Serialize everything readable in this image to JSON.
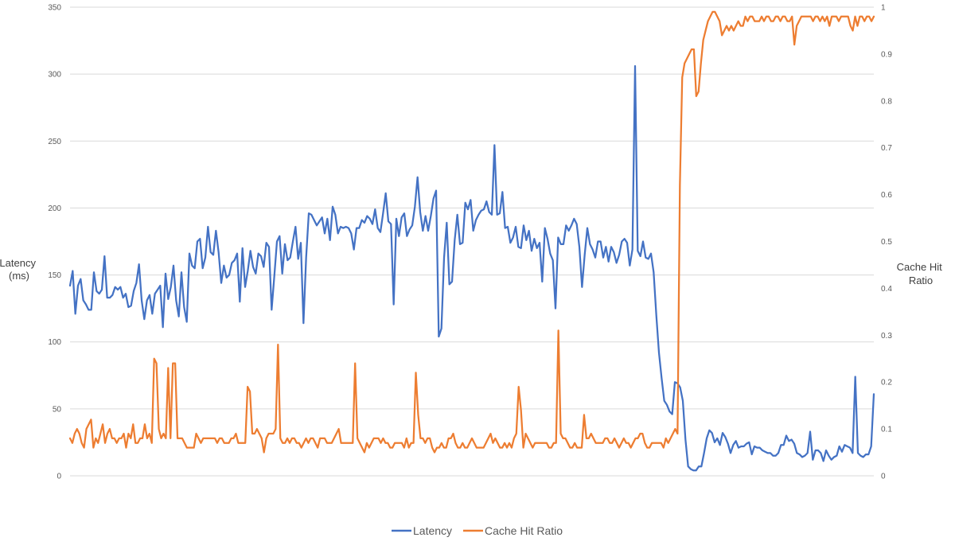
{
  "chart_data": {
    "type": "line",
    "title": "",
    "ylabel_lines": [
      "Latency",
      "(ms)"
    ],
    "y2label_lines": [
      "Cache Hit",
      "Ratio"
    ],
    "ylim": [
      0,
      350
    ],
    "y_ticks": [
      0,
      50,
      100,
      150,
      200,
      250,
      300,
      350
    ],
    "y2lim": [
      0,
      1
    ],
    "y2_ticks": [
      "0",
      "0.1",
      "0.2",
      "0.3",
      "0.4",
      "0.5",
      "0.6",
      "0.7",
      "0.8",
      "0.9",
      "1"
    ],
    "grid": true,
    "legend": "bottom",
    "series": [
      {
        "name": "Latency",
        "axis": "left",
        "color": "#4472c4",
        "values": [
          142,
          153,
          121,
          142,
          147,
          131,
          128,
          124,
          124,
          152,
          138,
          136,
          139,
          164,
          133,
          133,
          135,
          141,
          139,
          141,
          133,
          136,
          126,
          127,
          138,
          144,
          158,
          131,
          117,
          131,
          135,
          121,
          136,
          139,
          142,
          111,
          151,
          132,
          141,
          157,
          131,
          119,
          152,
          126,
          115,
          166,
          157,
          155,
          175,
          177,
          155,
          163,
          186,
          167,
          165,
          183,
          167,
          144,
          157,
          148,
          150,
          159,
          161,
          166,
          130,
          170,
          141,
          153,
          168,
          156,
          151,
          166,
          164,
          156,
          174,
          171,
          124,
          149,
          175,
          179,
          151,
          173,
          161,
          163,
          175,
          186,
          162,
          174,
          114,
          163,
          196,
          195,
          191,
          187,
          190,
          193,
          181,
          192,
          176,
          201,
          195,
          181,
          186,
          185,
          186,
          185,
          181,
          169,
          185,
          185,
          191,
          189,
          194,
          192,
          188,
          199,
          185,
          182,
          196,
          211,
          190,
          188,
          128,
          192,
          179,
          193,
          196,
          179,
          184,
          187,
          201,
          223,
          197,
          183,
          194,
          183,
          194,
          207,
          213,
          104,
          110,
          163,
          189,
          143,
          145,
          176,
          195,
          173,
          174,
          204,
          199,
          206,
          183,
          191,
          195,
          198,
          199,
          205,
          197,
          195,
          247,
          195,
          196,
          212,
          185,
          186,
          174,
          178,
          186,
          171,
          170,
          187,
          176,
          183,
          168,
          177,
          170,
          174,
          145,
          185,
          177,
          166,
          161,
          125,
          178,
          173,
          173,
          187,
          183,
          187,
          192,
          188,
          171,
          141,
          165,
          185,
          173,
          169,
          163,
          175,
          175,
          163,
          171,
          160,
          171,
          167,
          159,
          165,
          175,
          177,
          174,
          157,
          169,
          306,
          168,
          164,
          175,
          163,
          162,
          166,
          152,
          120,
          92,
          73,
          56,
          53,
          48,
          46,
          70,
          69,
          66,
          56,
          27,
          7,
          5,
          4,
          4,
          7,
          7,
          17,
          28,
          34,
          32,
          25,
          28,
          23,
          32,
          29,
          24,
          17,
          23,
          26,
          21,
          22,
          22,
          24,
          25,
          16,
          22,
          21,
          21,
          19,
          18,
          17,
          17,
          15,
          15,
          17,
          23,
          23,
          30,
          26,
          27,
          24,
          17,
          16,
          14,
          15,
          17,
          33,
          12,
          19,
          19,
          17,
          11,
          19,
          15,
          12,
          14,
          15,
          22,
          18,
          23,
          22,
          21,
          17,
          74,
          17,
          15,
          14,
          16,
          16,
          22,
          61
        ]
      },
      {
        "name": "Cache Hit Ratio",
        "axis": "right",
        "color": "#ed7d31",
        "values": [
          0.08,
          0.07,
          0.09,
          0.1,
          0.09,
          0.07,
          0.06,
          0.1,
          0.11,
          0.12,
          0.06,
          0.08,
          0.07,
          0.09,
          0.11,
          0.07,
          0.09,
          0.1,
          0.08,
          0.08,
          0.07,
          0.08,
          0.08,
          0.09,
          0.06,
          0.09,
          0.08,
          0.11,
          0.07,
          0.07,
          0.08,
          0.08,
          0.11,
          0.08,
          0.09,
          0.07,
          0.25,
          0.24,
          0.1,
          0.08,
          0.09,
          0.08,
          0.23,
          0.08,
          0.24,
          0.24,
          0.08,
          0.08,
          0.08,
          0.07,
          0.06,
          0.06,
          0.06,
          0.06,
          0.09,
          0.08,
          0.07,
          0.08,
          0.08,
          0.08,
          0.08,
          0.08,
          0.08,
          0.07,
          0.08,
          0.08,
          0.07,
          0.07,
          0.07,
          0.08,
          0.08,
          0.09,
          0.07,
          0.07,
          0.07,
          0.07,
          0.19,
          0.18,
          0.09,
          0.09,
          0.1,
          0.09,
          0.08,
          0.05,
          0.08,
          0.09,
          0.09,
          0.09,
          0.1,
          0.28,
          0.08,
          0.07,
          0.07,
          0.08,
          0.07,
          0.08,
          0.08,
          0.07,
          0.07,
          0.06,
          0.07,
          0.08,
          0.07,
          0.08,
          0.08,
          0.07,
          0.06,
          0.08,
          0.08,
          0.08,
          0.07,
          0.07,
          0.07,
          0.08,
          0.09,
          0.1,
          0.07,
          0.07,
          0.07,
          0.07,
          0.07,
          0.07,
          0.24,
          0.08,
          0.07,
          0.06,
          0.05,
          0.07,
          0.06,
          0.07,
          0.08,
          0.08,
          0.08,
          0.07,
          0.08,
          0.07,
          0.07,
          0.06,
          0.06,
          0.07,
          0.07,
          0.07,
          0.07,
          0.06,
          0.08,
          0.06,
          0.07,
          0.07,
          0.22,
          0.13,
          0.08,
          0.08,
          0.07,
          0.08,
          0.08,
          0.06,
          0.05,
          0.06,
          0.06,
          0.07,
          0.06,
          0.06,
          0.08,
          0.08,
          0.09,
          0.07,
          0.06,
          0.06,
          0.07,
          0.06,
          0.06,
          0.07,
          0.08,
          0.07,
          0.06,
          0.06,
          0.06,
          0.06,
          0.07,
          0.08,
          0.09,
          0.07,
          0.08,
          0.07,
          0.06,
          0.06,
          0.07,
          0.06,
          0.07,
          0.06,
          0.08,
          0.09,
          0.19,
          0.14,
          0.06,
          0.09,
          0.08,
          0.07,
          0.06,
          0.07,
          0.07,
          0.07,
          0.07,
          0.07,
          0.07,
          0.06,
          0.06,
          0.07,
          0.07,
          0.31,
          0.09,
          0.08,
          0.08,
          0.07,
          0.06,
          0.06,
          0.07,
          0.06,
          0.06,
          0.06,
          0.13,
          0.08,
          0.08,
          0.09,
          0.08,
          0.07,
          0.07,
          0.07,
          0.07,
          0.08,
          0.08,
          0.07,
          0.07,
          0.08,
          0.07,
          0.06,
          0.07,
          0.08,
          0.07,
          0.07,
          0.06,
          0.07,
          0.08,
          0.08,
          0.09,
          0.09,
          0.07,
          0.06,
          0.06,
          0.07,
          0.07,
          0.07,
          0.07,
          0.07,
          0.06,
          0.08,
          0.07,
          0.08,
          0.09,
          0.1,
          0.09,
          0.62,
          0.85,
          0.88,
          0.89,
          0.9,
          0.91,
          0.91,
          0.81,
          0.82,
          0.88,
          0.93,
          0.95,
          0.97,
          0.98,
          0.99,
          0.99,
          0.98,
          0.97,
          0.94,
          0.95,
          0.96,
          0.95,
          0.96,
          0.95,
          0.96,
          0.97,
          0.96,
          0.96,
          0.98,
          0.97,
          0.98,
          0.98,
          0.97,
          0.97,
          0.97,
          0.98,
          0.97,
          0.98,
          0.98,
          0.97,
          0.97,
          0.98,
          0.98,
          0.97,
          0.98,
          0.98,
          0.97,
          0.97,
          0.98,
          0.92,
          0.96,
          0.97,
          0.98,
          0.98,
          0.98,
          0.98,
          0.98,
          0.97,
          0.98,
          0.98,
          0.97,
          0.98,
          0.97,
          0.98,
          0.96,
          0.98,
          0.98,
          0.98,
          0.97,
          0.98,
          0.98,
          0.98,
          0.98,
          0.96,
          0.95,
          0.98,
          0.96,
          0.98,
          0.98,
          0.97,
          0.98,
          0.98,
          0.97,
          0.98
        ]
      }
    ]
  }
}
